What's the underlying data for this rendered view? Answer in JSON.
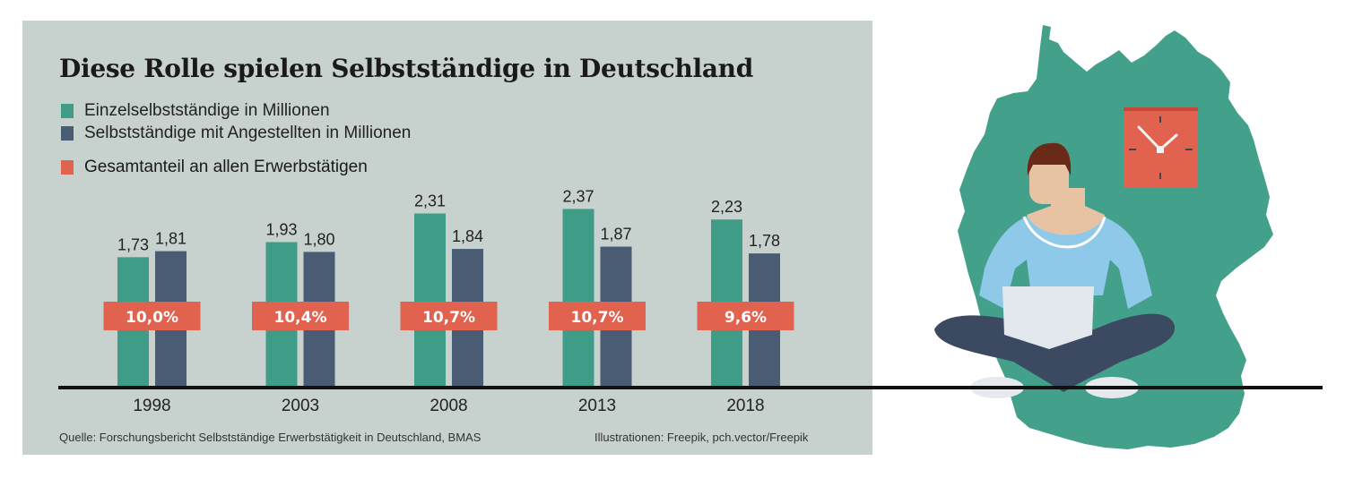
{
  "colors": {
    "panel_bg": "#c7d1ce",
    "einzel": "#3f9d87",
    "angestellte": "#4a5c73",
    "gesamtanteil": "#e0624f",
    "baseline": "#111111"
  },
  "chart_data": {
    "type": "bar",
    "title": "Diese Rolle spielen Selbstständige in Deutschland",
    "xlabel": "",
    "ylabel": "",
    "ylim": [
      0,
      2.6
    ],
    "grid": false,
    "legend_position": "top-left",
    "categories": [
      "1998",
      "2003",
      "2008",
      "2013",
      "2018"
    ],
    "series": [
      {
        "name": "Einzelselbstständige in Millionen",
        "values": [
          1.73,
          1.93,
          2.31,
          2.37,
          2.23
        ],
        "labels": [
          "1,73",
          "1,93",
          "2,31",
          "2,37",
          "2,23"
        ]
      },
      {
        "name": "Selbstständige mit Angestellten in Millionen",
        "values": [
          1.81,
          1.8,
          1.84,
          1.87,
          1.78
        ],
        "labels": [
          "1,81",
          "1,80",
          "1,84",
          "1,87",
          "1,78"
        ]
      }
    ],
    "annotations": {
      "name": "Gesamtanteil an allen Erwerbstätigen",
      "values_percent": [
        10.0,
        10.4,
        10.7,
        10.7,
        9.6
      ],
      "labels": [
        "10,0%",
        "10,4%",
        "10,7%",
        "10,7%",
        "9,6%"
      ]
    }
  },
  "legend": [
    {
      "label": "Einzelselbstständige in Millionen",
      "color_key": "einzel"
    },
    {
      "label": "Selbstständige mit Angestellten in Millionen",
      "color_key": "angestellte"
    },
    {
      "label": "Gesamtanteil an allen Erwerbstätigen",
      "color_key": "gesamtanteil"
    }
  ],
  "footer": {
    "source": "Quelle: Forschungsbericht Selbstständige Erwerbstätigkeit in Deutschland, BMAS",
    "credits": "Illustrationen: Freepik, pch.vector/Freepik"
  },
  "illustration": {
    "icons": [
      "germany-map-icon",
      "wall-clock-icon",
      "person-with-laptop-icon"
    ]
  }
}
